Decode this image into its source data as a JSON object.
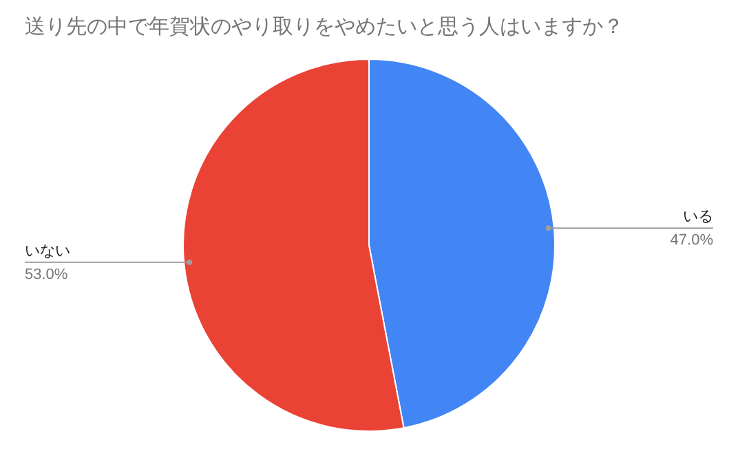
{
  "chart_data": {
    "type": "pie",
    "title": "送り先の中で年賀状のやり取りをやめたいと思う人はいますか？",
    "categories": [
      "いる",
      "いない"
    ],
    "values": [
      47.0,
      53.0
    ],
    "value_labels": [
      "47.0%",
      "53.0%"
    ],
    "colors": [
      "#4285f4",
      "#ea4335"
    ]
  }
}
